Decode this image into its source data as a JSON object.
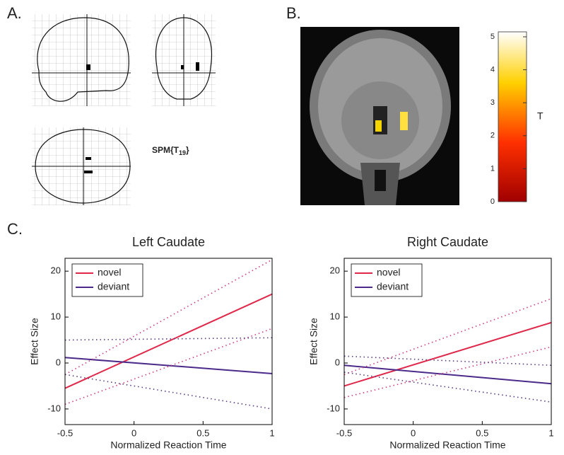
{
  "panels": {
    "a": "A.",
    "b": "B.",
    "c": "C."
  },
  "spm": {
    "main": "SPM{T",
    "sub": "19",
    "end": "}"
  },
  "colorbar": {
    "label": "T",
    "lim": [
      0,
      5.15
    ],
    "ticks": [
      0,
      1,
      2,
      3,
      4,
      5
    ]
  },
  "chart_data": [
    {
      "type": "line",
      "title": "Left Caudate",
      "x_label": "Normalized Reaction Time",
      "y_label": "Effect Size",
      "x": [
        -0.5,
        1
      ],
      "xlim": [
        -0.5,
        1
      ],
      "xticks": [
        -0.5,
        0,
        0.5,
        1
      ],
      "ylim": [
        -13.4,
        22.8
      ],
      "yticks": [
        -10,
        0,
        10,
        20
      ],
      "legend": "upper-left",
      "series": [
        {
          "name": "novel",
          "color": "#e0284a",
          "values": [
            -5.5,
            15
          ]
        },
        {
          "name": "deviant",
          "color": "#4b2a8a",
          "values": [
            1.2,
            -2.3
          ]
        },
        {
          "color": "#d03a80",
          "dotted": true,
          "values": [
            -2.5,
            22.5
          ]
        },
        {
          "color": "#d03a80",
          "dotted": true,
          "values": [
            -9,
            7.5
          ]
        },
        {
          "color": "#5a3a80",
          "dotted": true,
          "values": [
            5,
            5.5
          ]
        },
        {
          "color": "#5a3a80",
          "dotted": true,
          "values": [
            -2.5,
            -10
          ]
        }
      ]
    },
    {
      "type": "line",
      "title": "Right Caudate",
      "x_label": "Normalized Reaction Time",
      "y_label": "Effect Size",
      "x": [
        -0.5,
        1
      ],
      "xlim": [
        -0.5,
        1
      ],
      "xticks": [
        -0.5,
        0,
        0.5,
        1
      ],
      "ylim": [
        -13.4,
        22.8
      ],
      "yticks": [
        -10,
        0,
        10,
        20
      ],
      "legend": "upper-left",
      "series": [
        {
          "name": "novel",
          "color": "#e0284a",
          "values": [
            -5,
            8.8
          ]
        },
        {
          "name": "deviant",
          "color": "#4b2a8a",
          "values": [
            -0.5,
            -4.5
          ]
        },
        {
          "color": "#d03a80",
          "dotted": true,
          "values": [
            -2.5,
            14
          ]
        },
        {
          "color": "#d03a80",
          "dotted": true,
          "values": [
            -7.5,
            3.5
          ]
        },
        {
          "color": "#5a3a80",
          "dotted": true,
          "values": [
            1.5,
            -0.5
          ]
        },
        {
          "color": "#5a3a80",
          "dotted": true,
          "values": [
            -2,
            -8.5
          ]
        }
      ]
    }
  ]
}
